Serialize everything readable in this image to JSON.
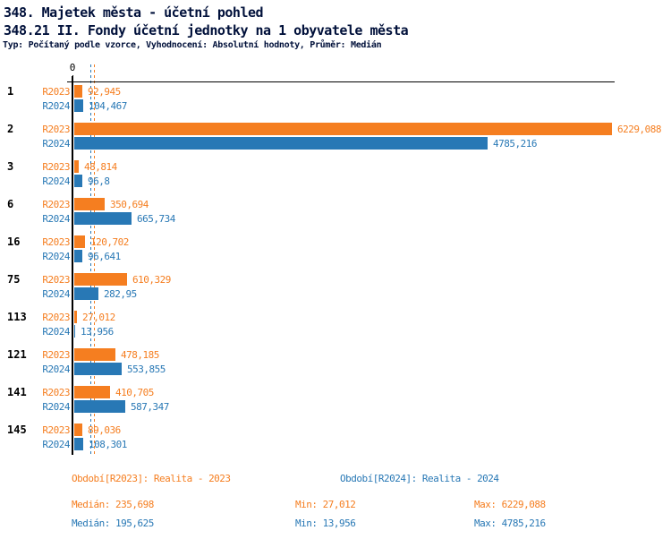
{
  "header": {
    "title": "348. Majetek města - účetní pohled",
    "subtitle": "348.21 II. Fondy účetní jednotky na 1 obyvatele města",
    "meta": "Typ: Počítaný podle vzorce, Vyhodnocení: Absolutní hodnoty, Průměr: Medián"
  },
  "axis": {
    "zero_label": "0"
  },
  "colors": {
    "r2023": "#F57E20",
    "r2024": "#2878B5",
    "axis": "#000000",
    "title_text": "#00103a",
    "background": "#ffffff"
  },
  "chart_data": {
    "type": "bar",
    "orientation": "horizontal",
    "title": "348. Majetek města - účetní pohled",
    "subtitle": "348.21 II. Fondy účetní jednotky na 1 obyvatele města",
    "categories": [
      "1",
      "2",
      "3",
      "6",
      "16",
      "75",
      "113",
      "121",
      "141",
      "145"
    ],
    "series": [
      {
        "name": "R2023",
        "color": "#F57E20",
        "values": [
          92.945,
          6229.088,
          48.814,
          350.694,
          120.702,
          610.329,
          27.012,
          478.185,
          410.705,
          89.036
        ],
        "value_labels": [
          "92,945",
          "6229,088",
          "48,814",
          "350,694",
          "120,702",
          "610,329",
          "27,012",
          "478,185",
          "410,705",
          "89,036"
        ],
        "median": 235.698,
        "min": 27.012,
        "max": 6229.088
      },
      {
        "name": "R2024",
        "color": "#2878B5",
        "values": [
          104.467,
          4785.216,
          96.8,
          665.734,
          96.641,
          282.95,
          13.956,
          553.855,
          587.347,
          108.301
        ],
        "value_labels": [
          "104,467",
          "4785,216",
          "96,8",
          "665,734",
          "96,641",
          "282,95",
          "13,956",
          "553,855",
          "587,347",
          "108,301"
        ],
        "median": 195.625,
        "min": 13.956,
        "max": 4785.216
      }
    ],
    "xlim": [
      0,
      6229.088
    ],
    "grid": false,
    "median_lines_dashed": true,
    "legend_position": "bottom"
  },
  "footer": {
    "r2023": {
      "period": "Období[R2023]: Realita - 2023",
      "median": "Medián: 235,698",
      "min": "Min: 27,012",
      "max": "Max: 6229,088"
    },
    "r2024": {
      "period": "Období[R2024]: Realita - 2024",
      "median": "Medián: 195,625",
      "min": "Min: 13,956",
      "max": "Max: 4785,216"
    }
  }
}
